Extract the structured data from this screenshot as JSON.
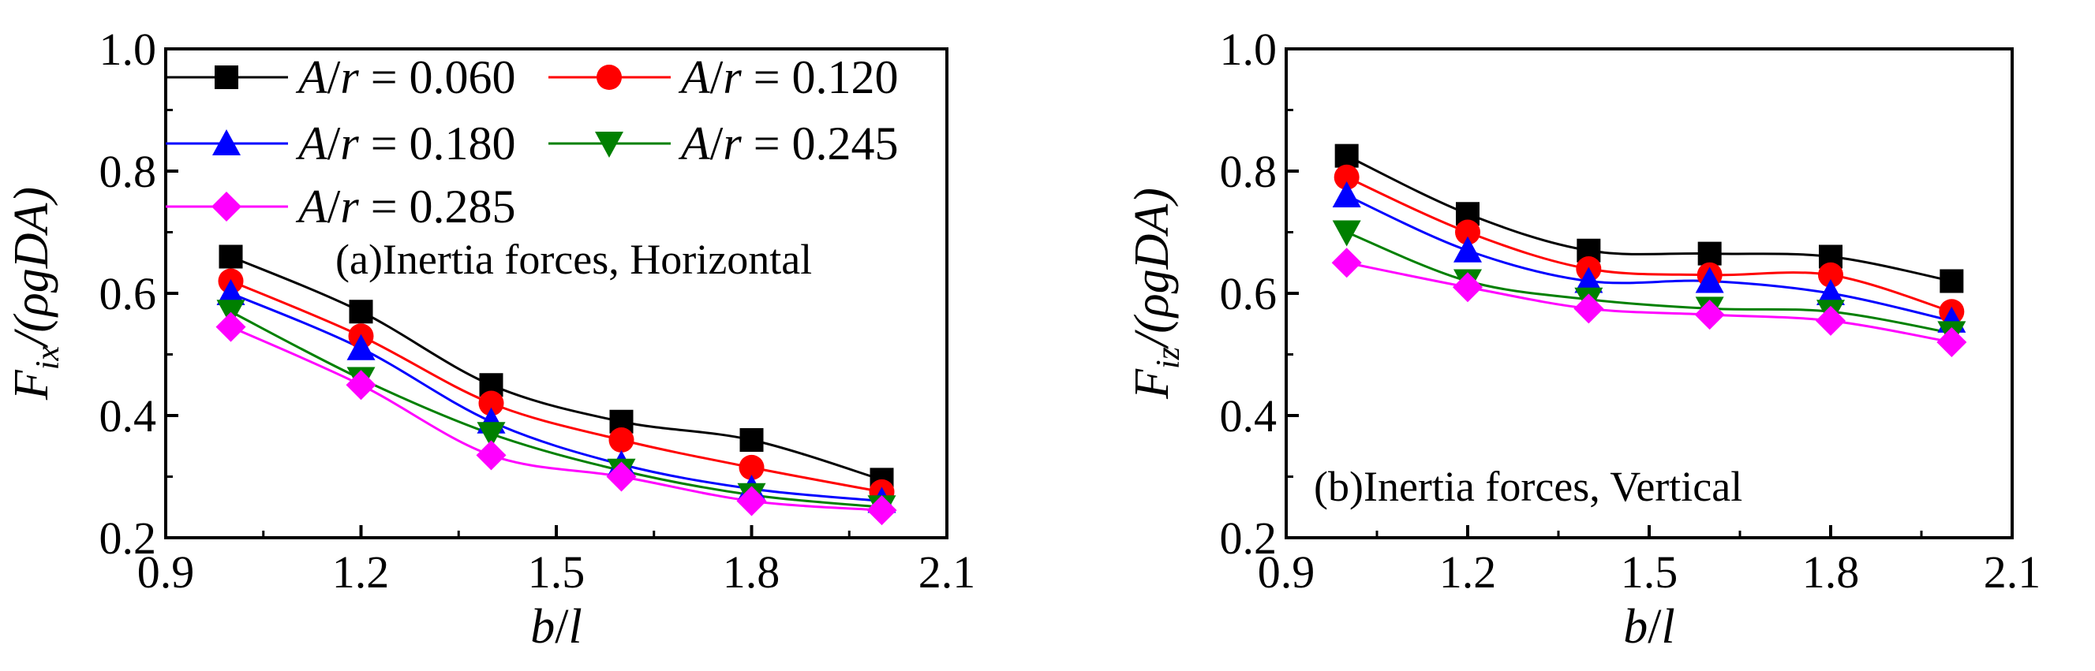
{
  "figure": {
    "panels": [
      "panel-a",
      "panel-b"
    ]
  },
  "chart_data": [
    {
      "id": "panel-a",
      "type": "line",
      "annotation": "(a)Inertia forces, Horizontal",
      "xlabel": {
        "main": "b",
        "sep": "/",
        "tail": "l"
      },
      "ylabel": {
        "F": "F",
        "sub": "ix",
        "rest": "/(ρgDA)"
      },
      "xlim": [
        0.9,
        2.1
      ],
      "ylim": [
        0.2,
        1.0
      ],
      "x_ticks": [
        "0.9",
        "1.2",
        "1.5",
        "1.8",
        "2.1"
      ],
      "y_ticks": [
        "0.2",
        "0.4",
        "0.6",
        "0.8",
        "1.0"
      ],
      "x": [
        1.0,
        1.2,
        1.4,
        1.6,
        1.8,
        2.0
      ],
      "series": [
        {
          "name": "A/r = 0.060",
          "value_label": "0.060",
          "color": "#000000",
          "marker": "square",
          "values": [
            0.66,
            0.57,
            0.45,
            0.39,
            0.36,
            0.295
          ]
        },
        {
          "name": "A/r = 0.120",
          "value_label": "0.120",
          "color": "#ff0000",
          "marker": "circle",
          "values": [
            0.62,
            0.53,
            0.42,
            0.36,
            0.315,
            0.275
          ]
        },
        {
          "name": "A/r = 0.180",
          "value_label": "0.180",
          "color": "#0000ff",
          "marker": "triangle-up",
          "values": [
            0.6,
            0.51,
            0.39,
            0.32,
            0.28,
            0.26
          ]
        },
        {
          "name": "A/r = 0.245",
          "value_label": "0.245",
          "color": "#008000",
          "marker": "triangle-down",
          "values": [
            0.57,
            0.46,
            0.37,
            0.31,
            0.27,
            0.25
          ]
        },
        {
          "name": "A/r = 0.285",
          "value_label": "0.285",
          "color": "#ff00ff",
          "marker": "diamond",
          "values": [
            0.545,
            0.45,
            0.335,
            0.3,
            0.26,
            0.245
          ]
        }
      ],
      "legend": {
        "placement": "top",
        "prefix_a": "A",
        "slash": "/",
        "prefix_r": "r",
        "eq": " = "
      }
    },
    {
      "id": "panel-b",
      "type": "line",
      "annotation": "(b)Inertia forces, Vertical",
      "xlabel": {
        "main": "b",
        "sep": "/",
        "tail": "l"
      },
      "ylabel": {
        "F": "F",
        "sub": "iz",
        "rest": "/(ρgDA)"
      },
      "xlim": [
        0.9,
        2.1
      ],
      "ylim": [
        0.2,
        1.0
      ],
      "x_ticks": [
        "0.9",
        "1.2",
        "1.5",
        "1.8",
        "2.1"
      ],
      "y_ticks": [
        "0.2",
        "0.4",
        "0.6",
        "0.8",
        "1.0"
      ],
      "x": [
        1.0,
        1.2,
        1.4,
        1.6,
        1.8,
        2.0
      ],
      "series": [
        {
          "name": "A/r = 0.060",
          "color": "#000000",
          "marker": "square",
          "values": [
            0.825,
            0.73,
            0.67,
            0.665,
            0.66,
            0.62
          ]
        },
        {
          "name": "A/r = 0.120",
          "color": "#ff0000",
          "marker": "circle",
          "values": [
            0.79,
            0.7,
            0.64,
            0.63,
            0.63,
            0.57
          ]
        },
        {
          "name": "A/r = 0.180",
          "color": "#0000ff",
          "marker": "triangle-up",
          "values": [
            0.76,
            0.67,
            0.62,
            0.62,
            0.6,
            0.555
          ]
        },
        {
          "name": "A/r = 0.245",
          "color": "#008000",
          "marker": "triangle-down",
          "values": [
            0.7,
            0.62,
            0.59,
            0.575,
            0.57,
            0.535
          ]
        },
        {
          "name": "A/r = 0.285",
          "color": "#ff00ff",
          "marker": "diamond",
          "values": [
            0.65,
            0.61,
            0.575,
            0.565,
            0.555,
            0.52
          ]
        }
      ]
    }
  ]
}
